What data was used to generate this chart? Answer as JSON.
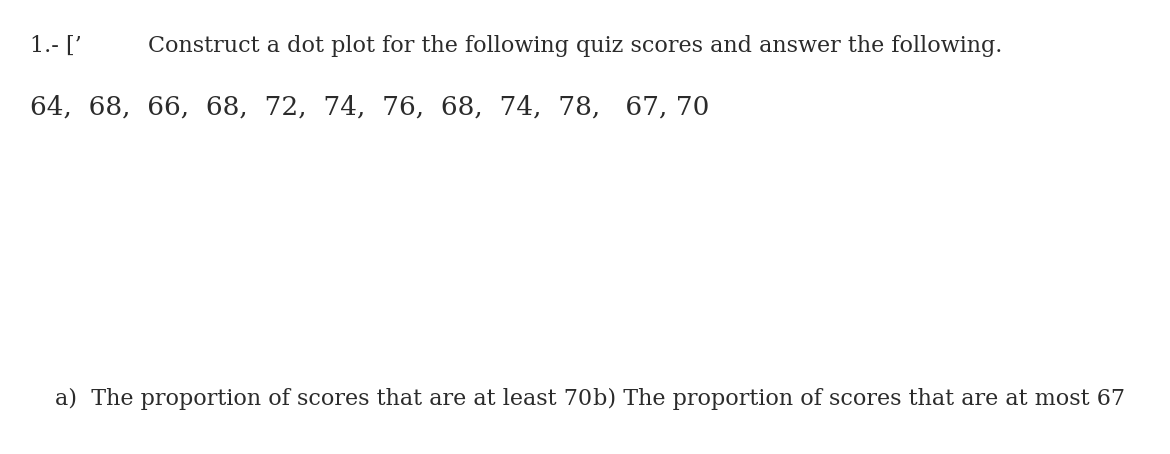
{
  "background_color": "#ffffff",
  "line1_prefix": "1.- [’",
  "line1_main": "Construct a dot plot for the following quiz scores and answer the following.",
  "line2": "64,  68,  66,  68,  72,  74,  76,  68,  74,  78,   67, 70",
  "line_a": "a)  The proportion of scores that are at least 70",
  "line_b": "b) The proportion of scores that are at most 67",
  "text_color": "#2b2b2b",
  "font_size_main": 16,
  "font_size_scores": 19,
  "font_size_questions": 16
}
